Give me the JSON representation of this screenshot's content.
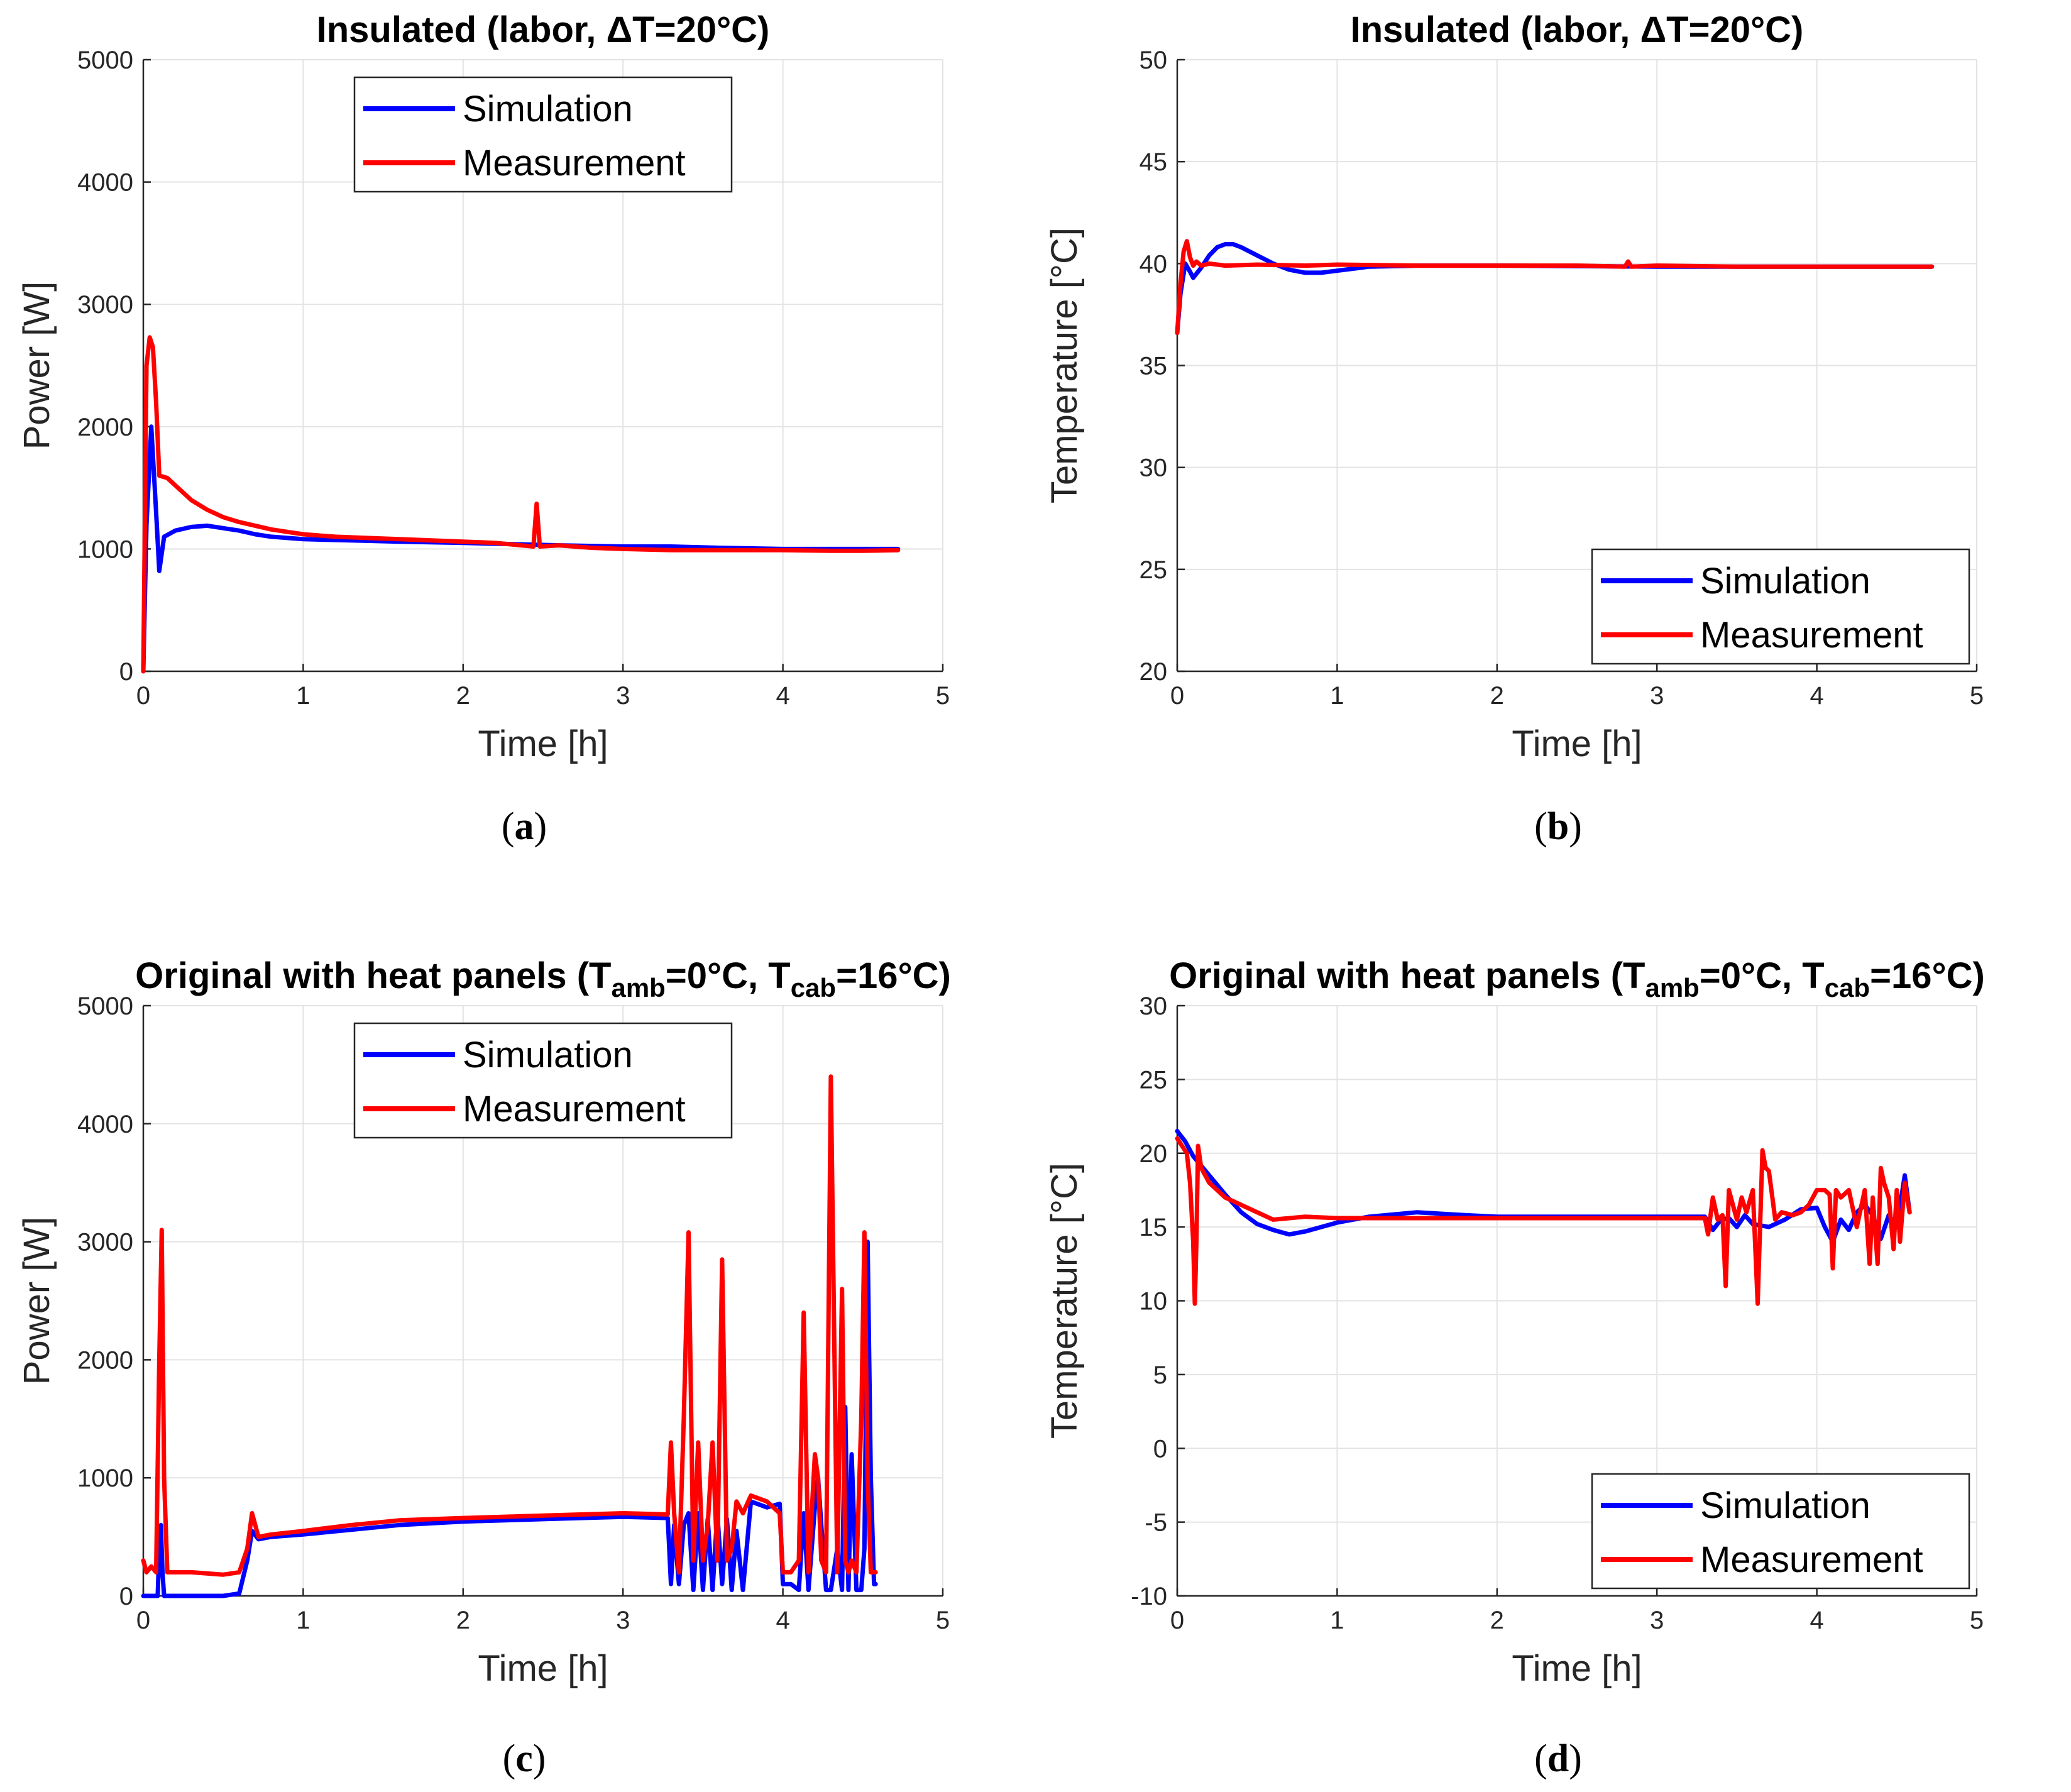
{
  "colors": {
    "simulation": "#0000ff",
    "measurement": "#ff0000",
    "grid": "#e3e3e3",
    "axis": "#262626"
  },
  "chart_data": [
    {
      "id": "a",
      "type": "line",
      "title": "Insulated (labor, ΔT=20°C)",
      "xlabel": "Time [h]",
      "ylabel": "Power [W]",
      "xlim": [
        0,
        5
      ],
      "ylim": [
        0,
        5000
      ],
      "xticks": [
        0,
        1,
        2,
        3,
        4,
        5
      ],
      "yticks": [
        0,
        1000,
        2000,
        3000,
        4000,
        5000
      ],
      "grid": true,
      "legend_position": "top-center",
      "caption": "a",
      "series": [
        {
          "name": "Simulation",
          "x": [
            0,
            0.02,
            0.05,
            0.08,
            0.1,
            0.13,
            0.2,
            0.3,
            0.4,
            0.5,
            0.6,
            0.7,
            0.8,
            1.0,
            1.3,
            1.6,
            2.0,
            2.3,
            2.6,
            3.0,
            3.3,
            3.6,
            4.0,
            4.3,
            4.5,
            4.72
          ],
          "y": [
            0,
            1200,
            2000,
            1300,
            820,
            1100,
            1150,
            1180,
            1190,
            1170,
            1150,
            1120,
            1100,
            1080,
            1070,
            1060,
            1050,
            1040,
            1030,
            1020,
            1020,
            1010,
            1000,
            1000,
            1000,
            1000
          ]
        },
        {
          "name": "Measurement",
          "x": [
            0,
            0.02,
            0.04,
            0.06,
            0.08,
            0.1,
            0.15,
            0.2,
            0.3,
            0.4,
            0.5,
            0.6,
            0.7,
            0.8,
            0.9,
            1.0,
            1.2,
            1.4,
            1.6,
            1.8,
            2.0,
            2.2,
            2.44,
            2.46,
            2.48,
            2.6,
            2.8,
            3.0,
            3.3,
            3.6,
            4.0,
            4.3,
            4.5,
            4.72
          ],
          "y": [
            0,
            2500,
            2730,
            2650,
            2200,
            1600,
            1580,
            1520,
            1400,
            1320,
            1260,
            1220,
            1190,
            1160,
            1140,
            1120,
            1100,
            1090,
            1080,
            1070,
            1060,
            1050,
            1020,
            1370,
            1020,
            1030,
            1010,
            1000,
            990,
            990,
            990,
            985,
            985,
            990
          ]
        }
      ]
    },
    {
      "id": "b",
      "type": "line",
      "title": "Insulated (labor, ΔT=20°C)",
      "xlabel": "Time [h]",
      "ylabel": "Temperature [°C]",
      "xlim": [
        0,
        5
      ],
      "ylim": [
        20,
        50
      ],
      "xticks": [
        0,
        1,
        2,
        3,
        4,
        5
      ],
      "yticks": [
        20,
        25,
        30,
        35,
        40,
        45,
        50
      ],
      "grid": true,
      "legend_position": "bottom-right",
      "caption": "b",
      "series": [
        {
          "name": "Simulation",
          "x": [
            0,
            0.02,
            0.05,
            0.08,
            0.1,
            0.15,
            0.2,
            0.25,
            0.3,
            0.35,
            0.4,
            0.5,
            0.6,
            0.7,
            0.8,
            0.9,
            1.0,
            1.2,
            1.5,
            2.0,
            3.0,
            4.0,
            4.72
          ],
          "y": [
            36.6,
            38.5,
            40.0,
            39.6,
            39.3,
            39.8,
            40.4,
            40.8,
            40.95,
            40.95,
            40.8,
            40.4,
            40.0,
            39.7,
            39.55,
            39.55,
            39.65,
            39.85,
            39.9,
            39.9,
            39.85,
            39.85,
            39.85
          ]
        },
        {
          "name": "Measurement",
          "x": [
            0,
            0.02,
            0.04,
            0.06,
            0.08,
            0.1,
            0.12,
            0.15,
            0.2,
            0.3,
            0.5,
            0.8,
            1.0,
            1.5,
            2.0,
            2.5,
            2.8,
            2.82,
            2.84,
            3.0,
            3.5,
            4.0,
            4.5,
            4.72
          ],
          "y": [
            36.6,
            39.0,
            40.6,
            41.1,
            40.3,
            39.9,
            40.1,
            39.9,
            40.0,
            39.9,
            39.95,
            39.9,
            39.95,
            39.9,
            39.9,
            39.9,
            39.85,
            40.1,
            39.85,
            39.9,
            39.85,
            39.85,
            39.85,
            39.85
          ]
        }
      ]
    },
    {
      "id": "c",
      "type": "line",
      "title": "Original with heat panels (T",
      "title_sub1": "amb",
      "title_mid": "=0°C, T",
      "title_sub2": "cab",
      "title_end": "=16°C)",
      "xlabel": "Time [h]",
      "ylabel": "Power [W]",
      "xlim": [
        0,
        5
      ],
      "ylim": [
        0,
        5000
      ],
      "xticks": [
        0,
        1,
        2,
        3,
        4,
        5
      ],
      "yticks": [
        0,
        1000,
        2000,
        3000,
        4000,
        5000
      ],
      "grid": true,
      "legend_position": "top-center",
      "caption": "c",
      "series": [
        {
          "name": "Simulation",
          "x": [
            0,
            0.05,
            0.09,
            0.1,
            0.11,
            0.12,
            0.13,
            0.15,
            0.3,
            0.5,
            0.6,
            0.65,
            0.68,
            0.72,
            0.8,
            1.0,
            1.3,
            1.6,
            2.0,
            2.5,
            3.0,
            3.28,
            3.3,
            3.32,
            3.35,
            3.38,
            3.41,
            3.44,
            3.47,
            3.5,
            3.53,
            3.56,
            3.59,
            3.62,
            3.65,
            3.68,
            3.71,
            3.75,
            3.8,
            3.9,
            3.98,
            4.0,
            4.05,
            4.1,
            4.13,
            4.16,
            4.2,
            4.22,
            4.24,
            4.27,
            4.3,
            4.34,
            4.37,
            4.39,
            4.41,
            4.43,
            4.46,
            4.49,
            4.51,
            4.53,
            4.55,
            4.57,
            4.58
          ],
          "y": [
            0,
            0,
            0,
            400,
            600,
            200,
            0,
            0,
            0,
            0,
            20,
            300,
            550,
            480,
            500,
            520,
            560,
            600,
            630,
            650,
            670,
            660,
            100,
            600,
            100,
            600,
            700,
            50,
            700,
            50,
            650,
            50,
            700,
            100,
            650,
            50,
            550,
            50,
            800,
            750,
            780,
            100,
            100,
            50,
            700,
            50,
            750,
            1000,
            600,
            50,
            50,
            400,
            50,
            1600,
            50,
            1200,
            50,
            50,
            400,
            3000,
            1000,
            100,
            100
          ]
        },
        {
          "name": "Measurement",
          "x": [
            0,
            0.02,
            0.05,
            0.08,
            0.1,
            0.115,
            0.13,
            0.15,
            0.3,
            0.5,
            0.6,
            0.65,
            0.68,
            0.72,
            0.8,
            1.0,
            1.3,
            1.6,
            2.0,
            2.5,
            3.0,
            3.28,
            3.3,
            3.32,
            3.35,
            3.38,
            3.41,
            3.44,
            3.47,
            3.5,
            3.53,
            3.56,
            3.59,
            3.62,
            3.65,
            3.68,
            3.71,
            3.75,
            3.8,
            3.9,
            3.98,
            4.0,
            4.05,
            4.1,
            4.13,
            4.16,
            4.2,
            4.22,
            4.24,
            4.27,
            4.3,
            4.34,
            4.37,
            4.39,
            4.41,
            4.43,
            4.46,
            4.49,
            4.51,
            4.53,
            4.55,
            4.57,
            4.58
          ],
          "y": [
            300,
            200,
            250,
            200,
            2000,
            3100,
            1000,
            200,
            200,
            180,
            200,
            400,
            700,
            500,
            520,
            550,
            600,
            640,
            660,
            680,
            700,
            690,
            1300,
            700,
            200,
            1500,
            3080,
            300,
            1300,
            300,
            600,
            1300,
            300,
            2850,
            300,
            400,
            800,
            700,
            850,
            800,
            700,
            200,
            200,
            300,
            2400,
            200,
            1200,
            1000,
            300,
            200,
            4400,
            200,
            2600,
            300,
            200,
            300,
            200,
            1500,
            3080,
            1000,
            200,
            200,
            200
          ]
        }
      ]
    },
    {
      "id": "d",
      "type": "line",
      "title": "Original with heat panels (T",
      "title_sub1": "amb",
      "title_mid": "=0°C, T",
      "title_sub2": "cab",
      "title_end": "=16°C)",
      "xlabel": "Time [h]",
      "ylabel": "Temperature [°C]",
      "xlim": [
        0,
        5
      ],
      "ylim": [
        -10,
        30
      ],
      "xticks": [
        0,
        1,
        2,
        3,
        4,
        5
      ],
      "yticks": [
        -10,
        -5,
        0,
        5,
        10,
        15,
        20,
        25,
        30
      ],
      "grid": true,
      "legend_position": "bottom-right",
      "caption": "d",
      "series": [
        {
          "name": "Simulation",
          "x": [
            0,
            0.05,
            0.1,
            0.2,
            0.3,
            0.4,
            0.5,
            0.6,
            0.7,
            0.8,
            1.0,
            1.2,
            1.5,
            1.8,
            2.0,
            2.5,
            3.0,
            3.3,
            3.35,
            3.4,
            3.45,
            3.5,
            3.55,
            3.6,
            3.7,
            3.8,
            3.9,
            4.0,
            4.05,
            4.1,
            4.15,
            4.2,
            4.25,
            4.3,
            4.35,
            4.4,
            4.45,
            4.5,
            4.55,
            4.58
          ],
          "y": [
            21.5,
            20.8,
            19.8,
            18.5,
            17.2,
            16.0,
            15.2,
            14.8,
            14.5,
            14.7,
            15.3,
            15.7,
            16.0,
            15.8,
            15.7,
            15.7,
            15.7,
            15.7,
            14.8,
            15.5,
            15.6,
            15.0,
            15.8,
            15.2,
            15.0,
            15.5,
            16.2,
            16.3,
            15.0,
            14.0,
            15.5,
            14.8,
            16.0,
            16.5,
            15.8,
            14.2,
            15.8,
            15.0,
            18.5,
            16.0
          ]
        },
        {
          "name": "Measurement",
          "x": [
            0,
            0.03,
            0.06,
            0.08,
            0.1,
            0.11,
            0.12,
            0.13,
            0.15,
            0.2,
            0.3,
            0.5,
            0.6,
            0.8,
            1.0,
            1.5,
            2.0,
            2.5,
            3.0,
            3.3,
            3.32,
            3.35,
            3.38,
            3.41,
            3.43,
            3.45,
            3.5,
            3.53,
            3.56,
            3.6,
            3.63,
            3.66,
            3.68,
            3.7,
            3.74,
            3.78,
            3.85,
            3.9,
            3.95,
            4.0,
            4.05,
            4.08,
            4.1,
            4.12,
            4.15,
            4.2,
            4.25,
            4.3,
            4.33,
            4.35,
            4.38,
            4.4,
            4.42,
            4.45,
            4.48,
            4.5,
            4.52,
            4.55,
            4.58
          ],
          "y": [
            21.0,
            20.5,
            20.0,
            18.0,
            14.0,
            9.8,
            14.0,
            20.5,
            19.0,
            18.0,
            17.0,
            16.0,
            15.5,
            15.7,
            15.6,
            15.6,
            15.6,
            15.6,
            15.6,
            15.6,
            14.5,
            17.0,
            15.5,
            15.8,
            11.0,
            17.5,
            15.5,
            17.0,
            16.0,
            17.5,
            9.8,
            20.2,
            19.0,
            18.8,
            15.5,
            16.0,
            15.8,
            16.0,
            16.5,
            17.5,
            17.5,
            17.2,
            12.2,
            17.5,
            17.0,
            17.5,
            15.0,
            17.5,
            12.5,
            17.0,
            12.5,
            19.0,
            18.0,
            17.0,
            13.5,
            17.5,
            14.0,
            18.0,
            16.0
          ]
        }
      ]
    }
  ]
}
